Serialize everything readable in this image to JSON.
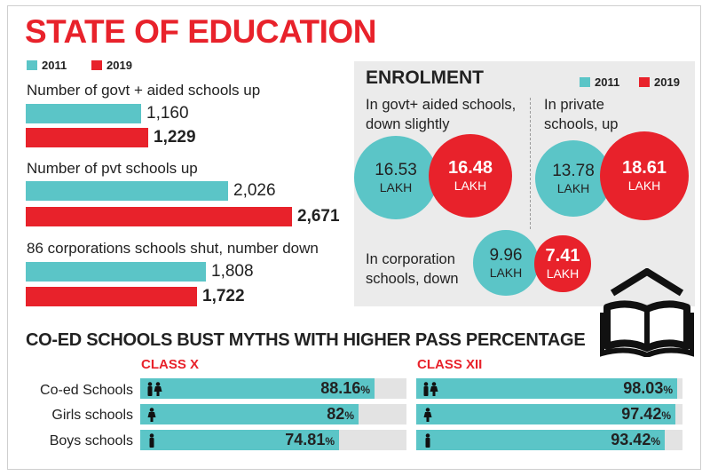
{
  "title": "STATE OF EDUCATION",
  "legend": {
    "y2011": "2011",
    "y2019": "2019"
  },
  "colors": {
    "teal": "#5bc5c7",
    "red": "#e8222b"
  },
  "chart_data": [
    {
      "type": "bar",
      "orientation": "horizontal",
      "title": "STATE OF EDUCATION",
      "series_names": [
        "2011",
        "2019"
      ],
      "groups": [
        {
          "label": "Number of govt + aided schools up",
          "values": [
            1160,
            1229
          ],
          "display": [
            "1,160",
            "1,229"
          ]
        },
        {
          "label": "Number of pvt schools up",
          "values": [
            2026,
            2671
          ],
          "display": [
            "2,026",
            "2,671"
          ]
        },
        {
          "label": "86 corporations schools shut, number down",
          "values": [
            1808,
            1722
          ],
          "display": [
            "1,808",
            "1,722"
          ]
        }
      ],
      "xlim": [
        0,
        2671
      ]
    },
    {
      "type": "bubble",
      "title": "ENROLMENT",
      "unit": "LAKH",
      "series_names": [
        "2011",
        "2019"
      ],
      "groups": [
        {
          "label": "In govt+ aided schools, down slightly",
          "values": [
            16.53,
            16.48
          ],
          "display": [
            "16.53",
            "16.48"
          ]
        },
        {
          "label": "In private schools, up",
          "values": [
            13.78,
            18.61
          ],
          "display": [
            "13.78",
            "18.61"
          ]
        },
        {
          "label": "In corporation schools, down",
          "values": [
            9.96,
            7.41
          ],
          "display": [
            "9.96",
            "7.41"
          ]
        }
      ]
    },
    {
      "type": "bar",
      "orientation": "horizontal",
      "title": "CO-ED SCHOOLS BUST MYTHS WITH HIGHER PASS PERCENTAGE",
      "unit": "%",
      "xlim": [
        0,
        100
      ],
      "categories": [
        "Co-ed Schools",
        "Girls schools",
        "Boys schools"
      ],
      "panels": [
        {
          "name": "CLASS X",
          "values": [
            88.16,
            82,
            74.81
          ],
          "display": [
            "88.16",
            "82",
            "74.81"
          ]
        },
        {
          "name": "CLASS XII",
          "values": [
            98.03,
            97.42,
            93.42
          ],
          "display": [
            "98.03",
            "97.42",
            "93.42"
          ]
        }
      ]
    }
  ]
}
